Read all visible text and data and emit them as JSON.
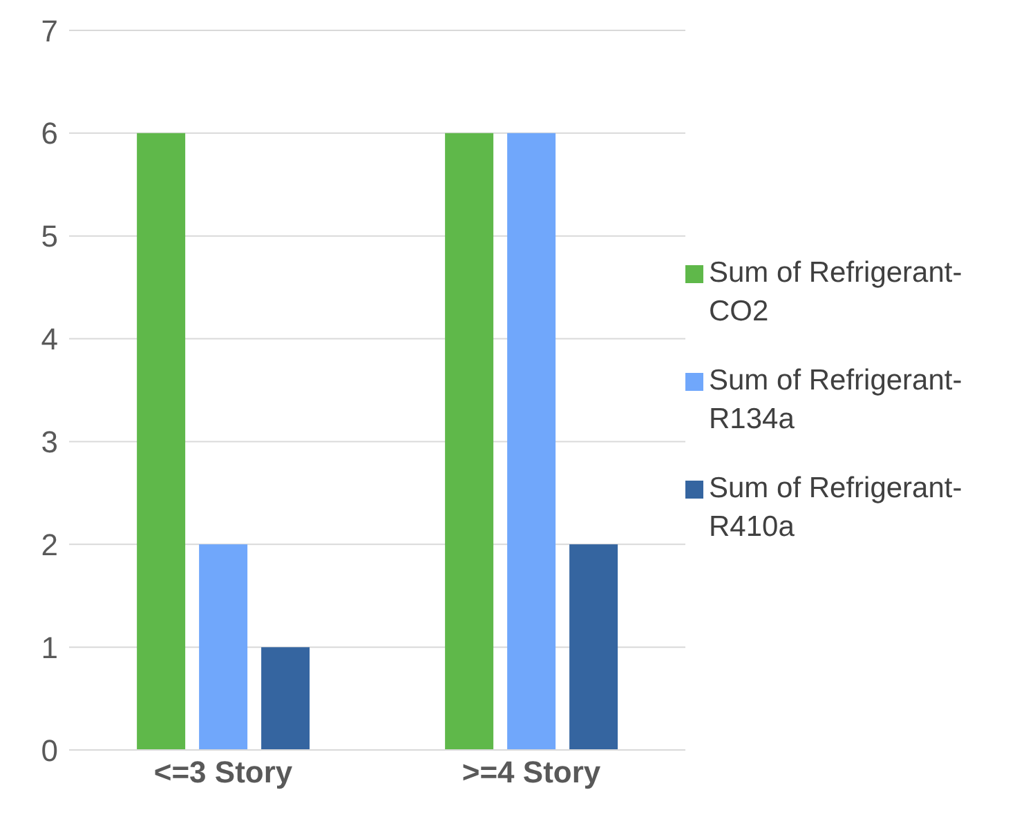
{
  "chart_data": {
    "type": "bar",
    "categories": [
      "<=3 Story",
      ">=4 Story"
    ],
    "series": [
      {
        "name": "Sum of Refrigerant-CO2",
        "color": "#5fb84a",
        "values": [
          6,
          6
        ]
      },
      {
        "name": "Sum of Refrigerant-R134a",
        "color": "#70a7fb",
        "values": [
          2,
          6
        ]
      },
      {
        "name": "Sum of Refrigerant-R410a",
        "color": "#3565a0",
        "values": [
          1,
          2
        ]
      }
    ],
    "ylim": [
      0,
      7
    ],
    "yticks": [
      0,
      1,
      2,
      3,
      4,
      5,
      6,
      7
    ],
    "grid": "y",
    "legend": "right"
  }
}
